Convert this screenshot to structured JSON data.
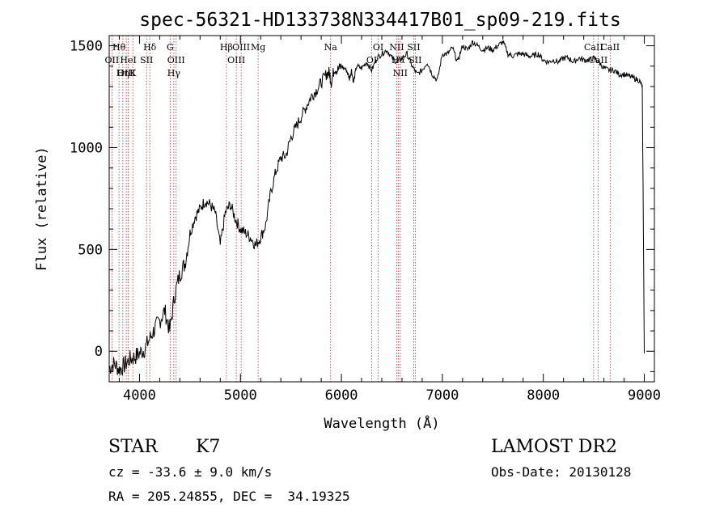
{
  "chart_data": {
    "type": "line",
    "title": "spec-56321-HD133738N334417B01_sp09-219.fits",
    "xlabel": "Wavelength (Å)",
    "ylabel": "Flux (relative)",
    "xlim": [
      3700,
      9100
    ],
    "ylim": [
      -150,
      1550
    ],
    "xticks": [
      4000,
      5000,
      6000,
      7000,
      8000,
      9000
    ],
    "yticks": [
      0,
      500,
      1000,
      1500
    ],
    "grid": false,
    "series": [
      {
        "x": [
          3700,
          3750,
          3800,
          3850,
          3900,
          3950,
          4000,
          4050,
          4100,
          4150,
          4200,
          4250,
          4300,
          4350,
          4400,
          4450,
          4500,
          4550,
          4600,
          4650,
          4700,
          4750,
          4800,
          4850,
          4900,
          4950,
          5000,
          5050,
          5100,
          5150,
          5200,
          5250,
          5300,
          5350,
          5400,
          5450,
          5500,
          5550,
          5600,
          5650,
          5700,
          5750,
          5800,
          5850,
          5880,
          5900,
          5930,
          5960,
          6000,
          6050,
          6080,
          6100,
          6120,
          6150,
          6200,
          6250,
          6300,
          6350,
          6400,
          6450,
          6500,
          6550,
          6600,
          6650,
          6700,
          6750,
          6800,
          6850,
          6900,
          6950,
          7000,
          7050,
          7100,
          7150,
          7200,
          7250,
          7300,
          7350,
          7400,
          7450,
          7500,
          7550,
          7600,
          7650,
          7700,
          7750,
          7800,
          7850,
          7900,
          7950,
          8000,
          8050,
          8100,
          8150,
          8200,
          8250,
          8300,
          8350,
          8400,
          8450,
          8500,
          8550,
          8600,
          8650,
          8700,
          8750,
          8800,
          8850,
          8900,
          8950,
          8980,
          9000
        ],
        "y": [
          -80,
          -60,
          -90,
          -70,
          -40,
          -30,
          -10,
          10,
          60,
          110,
          150,
          200,
          100,
          280,
          380,
          430,
          580,
          660,
          700,
          740,
          720,
          680,
          520,
          680,
          720,
          650,
          600,
          580,
          560,
          520,
          560,
          620,
          780,
          880,
          950,
          960,
          1050,
          1100,
          1150,
          1200,
          1250,
          1280,
          1320,
          1360,
          1370,
          1320,
          1390,
          1380,
          1400,
          1380,
          1340,
          1380,
          1320,
          1400,
          1390,
          1420,
          1380,
          1440,
          1460,
          1480,
          1440,
          1420,
          1440,
          1460,
          1400,
          1360,
          1380,
          1420,
          1360,
          1330,
          1460,
          1460,
          1490,
          1420,
          1500,
          1480,
          1520,
          1500,
          1480,
          1490,
          1480,
          1500,
          1520,
          1460,
          1450,
          1460,
          1460,
          1450,
          1450,
          1460,
          1430,
          1420,
          1430,
          1420,
          1440,
          1440,
          1420,
          1440,
          1430,
          1430,
          1440,
          1420,
          1390,
          1380,
          1380,
          1360,
          1360,
          1350,
          1340,
          1330,
          1300,
          -10
        ]
      }
    ],
    "line_markers": [
      {
        "label": "Hθ",
        "wavelength": 3797
      },
      {
        "label": "OII",
        "wavelength": 3727
      },
      {
        "label": "OIII",
        "wavelength": 3869
      },
      {
        "label": "HeI",
        "wavelength": 3889
      },
      {
        "label": "Hη",
        "wavelength": 3835
      },
      {
        "label": "K",
        "wavelength": 3934
      },
      {
        "label": "Hδ",
        "wavelength": 4102
      },
      {
        "label": "SII",
        "wavelength": 4070
      },
      {
        "label": "G",
        "wavelength": 4304
      },
      {
        "label": "OIII",
        "wavelength": 4363
      },
      {
        "label": "Hγ",
        "wavelength": 4340
      },
      {
        "label": "Hβ",
        "wavelength": 4861
      },
      {
        "label": "OIII",
        "wavelength": 4959
      },
      {
        "label": "OIII",
        "wavelength": 5007
      },
      {
        "label": "Mg",
        "wavelength": 5175
      },
      {
        "label": "Na",
        "wavelength": 5893
      },
      {
        "label": "OI",
        "wavelength": 6364
      },
      {
        "label": "OI",
        "wavelength": 6300
      },
      {
        "label": "NII",
        "wavelength": 6548
      },
      {
        "label": "Hα",
        "wavelength": 6563
      },
      {
        "label": "NII",
        "wavelength": 6583
      },
      {
        "label": "SII",
        "wavelength": 6716
      },
      {
        "label": "SII",
        "wavelength": 6731
      },
      {
        "label": "CaII",
        "wavelength": 8662
      },
      {
        "label": "CaII",
        "wavelength": 8542
      },
      {
        "label": "CaII",
        "wavelength": 8498
      }
    ]
  },
  "info": {
    "object_class": "STAR",
    "subclass": "K7",
    "survey": "LAMOST DR2",
    "cz": "cz = -33.6 ± 9.0 km/s",
    "obs_date": "Obs-Date: 20130128",
    "coords": "RA = 205.24855, DEC =  34.19325"
  }
}
